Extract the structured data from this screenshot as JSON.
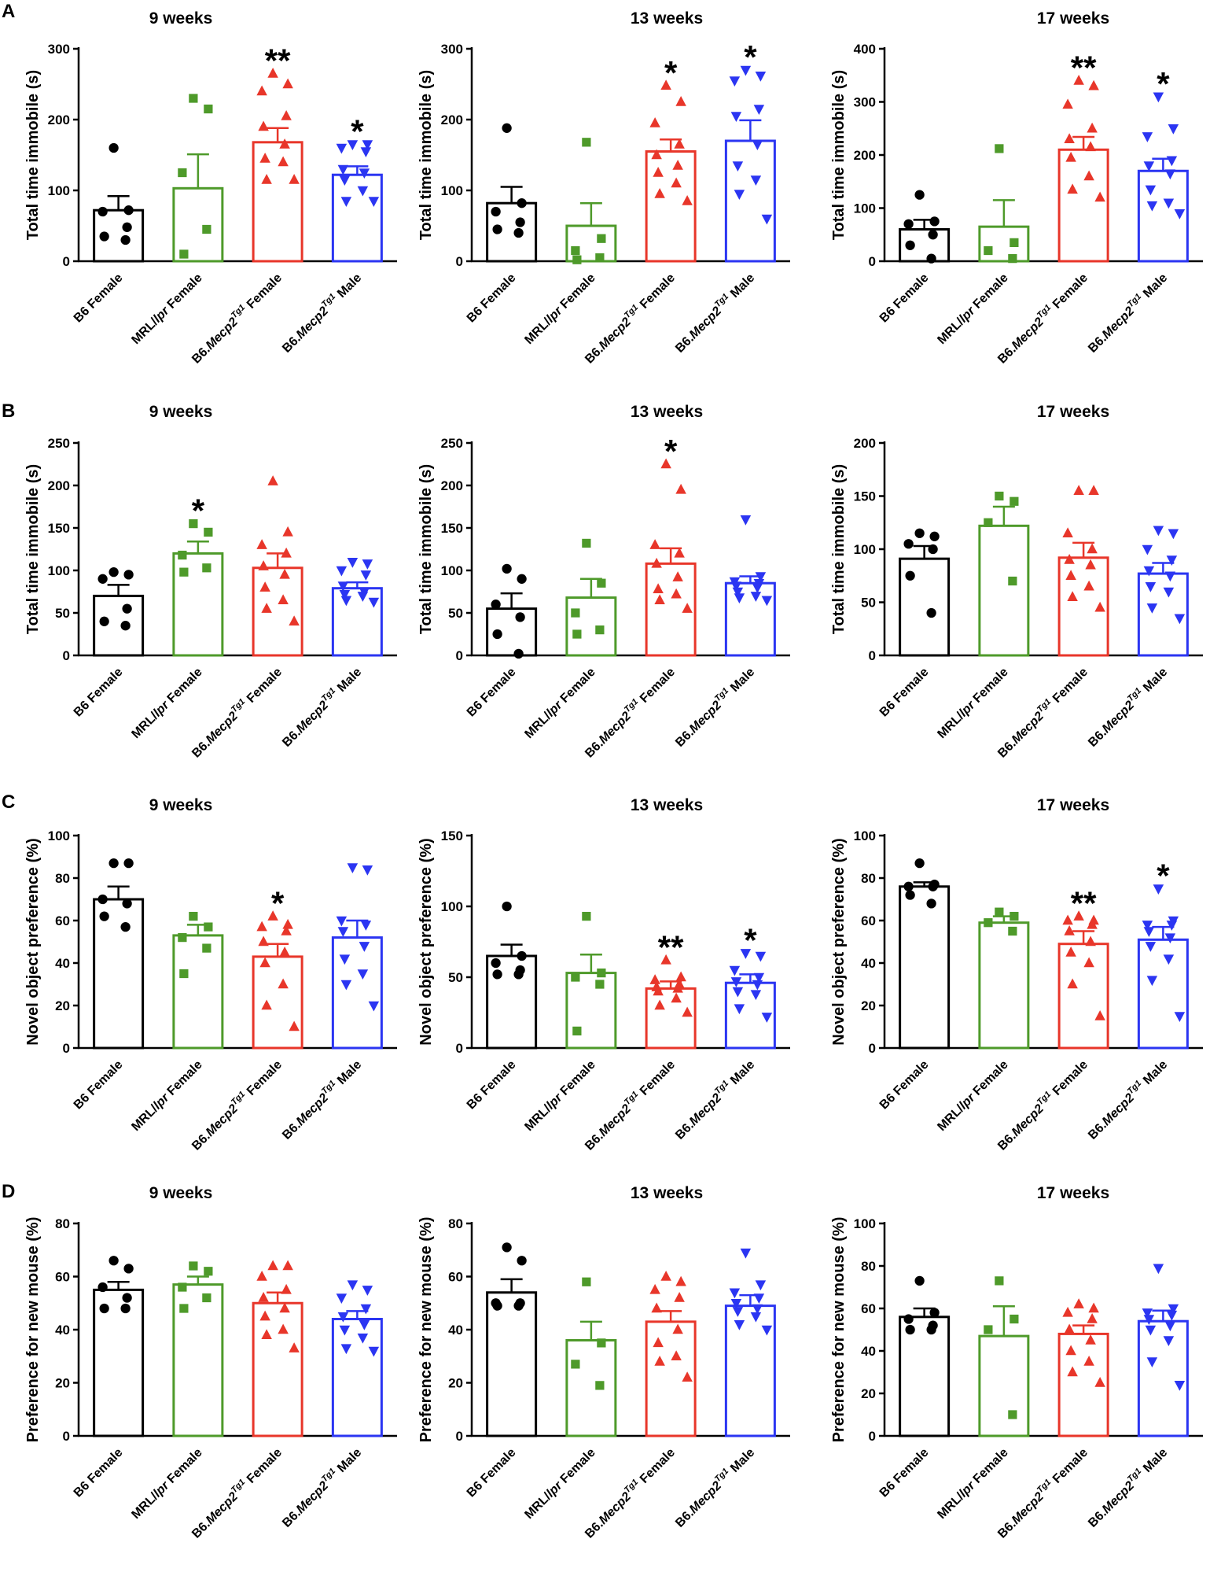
{
  "figure": {
    "panel_labels": [
      "A",
      "B",
      "C",
      "D"
    ],
    "groups": [
      {
        "prefix": "B6 Female",
        "italic": "",
        "sup": "",
        "suffix": ""
      },
      {
        "prefix": "MRL/",
        "italic": "lpr",
        "sup": "",
        "suffix": " Female"
      },
      {
        "prefix": "B6.",
        "italic": "Mecp2",
        "sup": "Tg1",
        "suffix": " Female"
      },
      {
        "prefix": "B6.",
        "italic": "Mecp2",
        "sup": "Tg1",
        "suffix": " Male"
      }
    ],
    "colors": {
      "B6 Female": "#000000",
      "MRL/lpr Female": "#4e9a2a",
      "B6.Mecp2Tg1 Female": "#e8362a",
      "B6.Mecp2Tg1 Male": "#2b35f2"
    },
    "markers": [
      "circle",
      "square",
      "triangle-up",
      "triangle-down"
    ]
  },
  "chart_data": [
    {
      "panel": "A",
      "title": "9 weeks",
      "ylabel": "Total time immobile (s)",
      "type": "bar",
      "ylim": [
        0,
        300
      ],
      "yticks": [
        0,
        100,
        200,
        300
      ],
      "means": [
        72,
        103,
        168,
        122
      ],
      "sem": [
        20,
        48,
        20,
        12
      ],
      "sig": [
        "",
        "",
        "**",
        "*"
      ],
      "points": [
        [
          160,
          72,
          70,
          48,
          35,
          30
        ],
        [
          230,
          215,
          125,
          45,
          10
        ],
        [
          265,
          250,
          240,
          205,
          190,
          165,
          145,
          140,
          115,
          115
        ],
        [
          165,
          165,
          160,
          155,
          130,
          125,
          115,
          100,
          85,
          85
        ]
      ]
    },
    {
      "panel": "A",
      "title": "13 weeks",
      "ylabel": "Total time immobile (s)",
      "type": "bar",
      "ylim": [
        0,
        300
      ],
      "yticks": [
        0,
        100,
        200,
        300
      ],
      "means": [
        82,
        50,
        155,
        170
      ],
      "sem": [
        23,
        32,
        17,
        29
      ],
      "sig": [
        "",
        "",
        "*",
        "*"
      ],
      "points": [
        [
          188,
          82,
          70,
          55,
          45,
          40
        ],
        [
          168,
          32,
          15,
          5,
          2
        ],
        [
          248,
          225,
          195,
          165,
          150,
          135,
          125,
          110,
          95,
          85
        ],
        [
          270,
          262,
          255,
          215,
          205,
          165,
          135,
          115,
          95,
          60
        ]
      ]
    },
    {
      "panel": "A",
      "title": "17 weeks",
      "ylabel": "Total time immobile (s)",
      "type": "bar",
      "ylim": [
        0,
        400
      ],
      "yticks": [
        0,
        100,
        200,
        300,
        400
      ],
      "means": [
        60,
        65,
        210,
        170
      ],
      "sem": [
        18,
        50,
        24,
        23
      ],
      "sig": [
        "",
        "",
        "**",
        "*"
      ],
      "points": [
        [
          125,
          75,
          70,
          50,
          30,
          5
        ],
        [
          212,
          35,
          20,
          5
        ],
        [
          340,
          330,
          295,
          250,
          230,
          215,
          195,
          160,
          135,
          120
        ],
        [
          310,
          250,
          235,
          190,
          180,
          165,
          135,
          110,
          105,
          90
        ]
      ]
    },
    {
      "panel": "B",
      "title": "9 weeks",
      "ylabel": "Total time immobile (s)",
      "type": "bar",
      "ylim": [
        0,
        250
      ],
      "yticks": [
        0,
        50,
        100,
        150,
        200,
        250
      ],
      "means": [
        70,
        120,
        103,
        79
      ],
      "sem": [
        13,
        14,
        17,
        7
      ],
      "sig": [
        "",
        "*",
        "",
        ""
      ],
      "points": [
        [
          98,
          95,
          90,
          55,
          40,
          35
        ],
        [
          155,
          145,
          118,
          103,
          98
        ],
        [
          205,
          145,
          130,
          120,
          105,
          95,
          80,
          65,
          55,
          40
        ],
        [
          110,
          108,
          100,
          95,
          82,
          75,
          72,
          70,
          65,
          63
        ]
      ]
    },
    {
      "panel": "B",
      "title": "13 weeks",
      "ylabel": "Total time immobile (s)",
      "type": "bar",
      "ylim": [
        0,
        250
      ],
      "yticks": [
        0,
        50,
        100,
        150,
        200,
        250
      ],
      "means": [
        55,
        68,
        108,
        85
      ],
      "sem": [
        18,
        22,
        18,
        8
      ],
      "sig": [
        "",
        "",
        "*",
        ""
      ],
      "points": [
        [
          102,
          90,
          60,
          45,
          25,
          2
        ],
        [
          132,
          85,
          50,
          30,
          25
        ],
        [
          225,
          195,
          130,
          120,
          108,
          92,
          78,
          72,
          65,
          55
        ],
        [
          160,
          93,
          87,
          85,
          82,
          80,
          75,
          70,
          68,
          65
        ]
      ]
    },
    {
      "panel": "B",
      "title": "17 weeks",
      "ylabel": "Total time immobile (s)",
      "type": "bar",
      "ylim": [
        0,
        200
      ],
      "yticks": [
        0,
        50,
        100,
        150,
        200
      ],
      "means": [
        91,
        122,
        92,
        77
      ],
      "sem": [
        12,
        18,
        14,
        10
      ],
      "sig": [
        "",
        "",
        "",
        ""
      ],
      "points": [
        [
          115,
          112,
          105,
          100,
          75,
          40
        ],
        [
          150,
          145,
          125,
          70
        ],
        [
          155,
          155,
          115,
          100,
          90,
          85,
          75,
          65,
          55,
          45
        ],
        [
          118,
          115,
          100,
          90,
          80,
          75,
          65,
          60,
          45,
          35
        ]
      ]
    },
    {
      "panel": "C",
      "title": "9 weeks",
      "ylabel": "Novel object preference (%)",
      "type": "bar",
      "ylim": [
        0,
        100
      ],
      "yticks": [
        0,
        20,
        40,
        60,
        80,
        100
      ],
      "means": [
        70,
        53,
        43,
        52
      ],
      "sem": [
        6,
        5,
        6,
        8
      ],
      "sig": [
        "",
        "",
        "*",
        ""
      ],
      "points": [
        [
          87,
          87,
          70,
          68,
          62,
          57
        ],
        [
          62,
          57,
          52,
          47,
          35
        ],
        [
          62,
          58,
          57,
          55,
          50,
          45,
          40,
          30,
          20,
          10
        ],
        [
          85,
          84,
          60,
          58,
          55,
          48,
          42,
          35,
          30,
          20
        ]
      ]
    },
    {
      "panel": "C",
      "title": "13 weeks",
      "ylabel": "Novel object preference (%)",
      "type": "bar",
      "ylim": [
        0,
        150
      ],
      "yticks": [
        0,
        50,
        100,
        150
      ],
      "means": [
        65,
        53,
        42,
        46
      ],
      "sem": [
        8,
        13,
        5,
        6
      ],
      "sig": [
        "",
        "",
        "**",
        "*"
      ],
      "points": [
        [
          100,
          65,
          60,
          55,
          52,
          52
        ],
        [
          93,
          53,
          50,
          45,
          12
        ],
        [
          62,
          50,
          48,
          45,
          43,
          42,
          40,
          35,
          30,
          25
        ],
        [
          67,
          65,
          55,
          50,
          47,
          45,
          40,
          38,
          28,
          22
        ]
      ]
    },
    {
      "panel": "C",
      "title": "17 weeks",
      "ylabel": "Novel object preference (%)",
      "type": "bar",
      "ylim": [
        0,
        100
      ],
      "yticks": [
        0,
        20,
        40,
        60,
        80,
        100
      ],
      "means": [
        76,
        59,
        49,
        51
      ],
      "sem": [
        2,
        3,
        6,
        6
      ],
      "sig": [
        "",
        "",
        "**",
        "*"
      ],
      "points": [
        [
          87,
          77,
          76,
          76,
          72,
          68
        ],
        [
          64,
          62,
          59,
          55
        ],
        [
          62,
          60,
          60,
          58,
          55,
          50,
          45,
          40,
          30,
          15
        ],
        [
          75,
          60,
          58,
          58,
          55,
          52,
          48,
          42,
          32,
          15
        ]
      ]
    },
    {
      "panel": "D",
      "title": "9 weeks",
      "ylabel": "Preference for new mouse (%)",
      "type": "bar",
      "ylim": [
        0,
        80
      ],
      "yticks": [
        0,
        20,
        40,
        60,
        80
      ],
      "means": [
        55,
        57,
        50,
        44
      ],
      "sem": [
        3,
        3,
        4,
        3
      ],
      "sig": [
        "",
        "",
        "",
        ""
      ],
      "points": [
        [
          66,
          63,
          56,
          52,
          48,
          48
        ],
        [
          64,
          62,
          56,
          52,
          48
        ],
        [
          64,
          64,
          60,
          55,
          52,
          48,
          45,
          40,
          38,
          33
        ],
        [
          57,
          55,
          52,
          48,
          45,
          42,
          40,
          37,
          33,
          32
        ]
      ]
    },
    {
      "panel": "D",
      "title": "13 weeks",
      "ylabel": "Preference for new mouse (%)",
      "type": "bar",
      "ylim": [
        0,
        80
      ],
      "yticks": [
        0,
        20,
        40,
        60,
        80
      ],
      "means": [
        54,
        36,
        43,
        49
      ],
      "sem": [
        5,
        7,
        4,
        4
      ],
      "sig": [
        "",
        "",
        "",
        ""
      ],
      "points": [
        [
          71,
          66,
          50,
          50,
          49,
          49
        ],
        [
          58,
          35,
          27,
          19
        ],
        [
          60,
          58,
          55,
          52,
          48,
          40,
          35,
          30,
          28,
          22
        ],
        [
          69,
          57,
          54,
          52,
          50,
          48,
          47,
          45,
          42,
          40
        ]
      ]
    },
    {
      "panel": "D",
      "title": "17 weeks",
      "ylabel": "Preference for new mouse (%)",
      "type": "bar",
      "ylim": [
        0,
        100
      ],
      "yticks": [
        0,
        20,
        40,
        60,
        80,
        100
      ],
      "means": [
        56,
        47,
        48,
        54
      ],
      "sem": [
        4,
        14,
        4,
        5
      ],
      "sig": [
        "",
        "",
        "",
        ""
      ],
      "points": [
        [
          73,
          58,
          55,
          52,
          50,
          50
        ],
        [
          73,
          55,
          50,
          10
        ],
        [
          62,
          60,
          58,
          55,
          50,
          45,
          40,
          35,
          30,
          25
        ],
        [
          79,
          60,
          58,
          57,
          55,
          52,
          50,
          45,
          35,
          24
        ]
      ]
    }
  ]
}
